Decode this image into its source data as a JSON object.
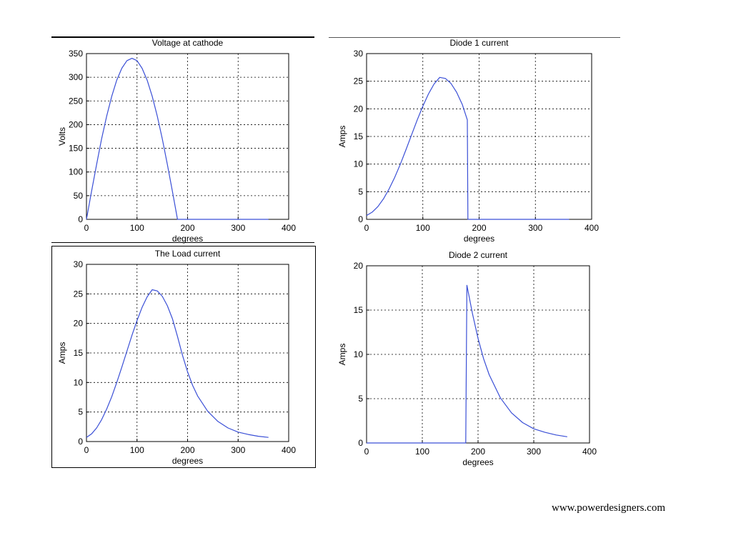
{
  "footer": {
    "text": "www.powerdesigners.com"
  },
  "colors": {
    "line": "#3a4fd6",
    "axes": "#000000",
    "grid": "#000000"
  },
  "chart_data": [
    {
      "type": "line",
      "title": "Voltage at cathode",
      "xlabel": "degrees",
      "ylabel": "Volts",
      "xlim": [
        0,
        400
      ],
      "ylim": [
        0,
        350
      ],
      "xticks": [
        0,
        100,
        200,
        300,
        400
      ],
      "yticks": [
        0,
        50,
        100,
        150,
        200,
        250,
        300,
        350
      ],
      "grid": true,
      "series": [
        {
          "x": [
            0,
            10,
            20,
            30,
            40,
            50,
            60,
            70,
            80,
            90,
            100,
            110,
            120,
            130,
            140,
            150,
            160,
            170,
            180,
            200,
            250,
            300,
            360
          ],
          "y": [
            0,
            59,
            116,
            170,
            218,
            260,
            294,
            319,
            335,
            340,
            335,
            319,
            294,
            260,
            218,
            170,
            116,
            59,
            0,
            0,
            0,
            0,
            0
          ]
        }
      ]
    },
    {
      "type": "line",
      "title": "Diode 1 current",
      "xlabel": "degrees",
      "ylabel": "Amps",
      "xlim": [
        0,
        400
      ],
      "ylim": [
        0,
        30
      ],
      "xticks": [
        0,
        100,
        200,
        300,
        400
      ],
      "yticks": [
        0,
        5,
        10,
        15,
        20,
        25,
        30
      ],
      "grid": true,
      "series": [
        {
          "x": [
            0,
            10,
            20,
            30,
            40,
            50,
            60,
            70,
            80,
            90,
            100,
            110,
            120,
            130,
            140,
            150,
            160,
            170,
            179,
            180,
            200,
            250,
            300,
            360
          ],
          "y": [
            0.7,
            1.3,
            2.3,
            3.7,
            5.5,
            7.6,
            10.0,
            12.6,
            15.3,
            18.0,
            20.5,
            22.7,
            24.5,
            25.7,
            25.5,
            24.6,
            23.0,
            20.8,
            18.0,
            0,
            0,
            0,
            0,
            0
          ]
        }
      ]
    },
    {
      "type": "line",
      "title": "The Load current",
      "xlabel": "degrees",
      "ylabel": "Amps",
      "xlim": [
        0,
        400
      ],
      "ylim": [
        0,
        30
      ],
      "xticks": [
        0,
        100,
        200,
        300,
        400
      ],
      "yticks": [
        0,
        5,
        10,
        15,
        20,
        25,
        30
      ],
      "grid": true,
      "series": [
        {
          "x": [
            0,
            10,
            20,
            30,
            40,
            50,
            60,
            70,
            80,
            90,
            100,
            110,
            120,
            130,
            140,
            150,
            160,
            170,
            180,
            190,
            200,
            210,
            220,
            240,
            260,
            280,
            300,
            320,
            340,
            360
          ],
          "y": [
            0.7,
            1.3,
            2.3,
            3.7,
            5.5,
            7.6,
            10.0,
            12.6,
            15.3,
            18.0,
            20.5,
            22.7,
            24.5,
            25.7,
            25.5,
            24.6,
            23.0,
            20.8,
            17.8,
            14.6,
            11.8,
            9.5,
            7.7,
            5.1,
            3.4,
            2.3,
            1.6,
            1.2,
            0.9,
            0.7
          ]
        }
      ]
    },
    {
      "type": "line",
      "title": "Diode 2 current",
      "xlabel": "degrees",
      "ylabel": "Amps",
      "xlim": [
        0,
        400
      ],
      "ylim": [
        0,
        20
      ],
      "xticks": [
        0,
        100,
        200,
        300,
        400
      ],
      "yticks": [
        0,
        5,
        10,
        15,
        20
      ],
      "grid": true,
      "series": [
        {
          "x": [
            0,
            100,
            178,
            179,
            180,
            190,
            200,
            210,
            220,
            240,
            260,
            280,
            300,
            320,
            340,
            360
          ],
          "y": [
            0,
            0,
            0,
            9,
            17.8,
            14.6,
            11.8,
            9.5,
            7.7,
            5.1,
            3.4,
            2.3,
            1.6,
            1.2,
            0.9,
            0.7
          ]
        }
      ]
    }
  ]
}
